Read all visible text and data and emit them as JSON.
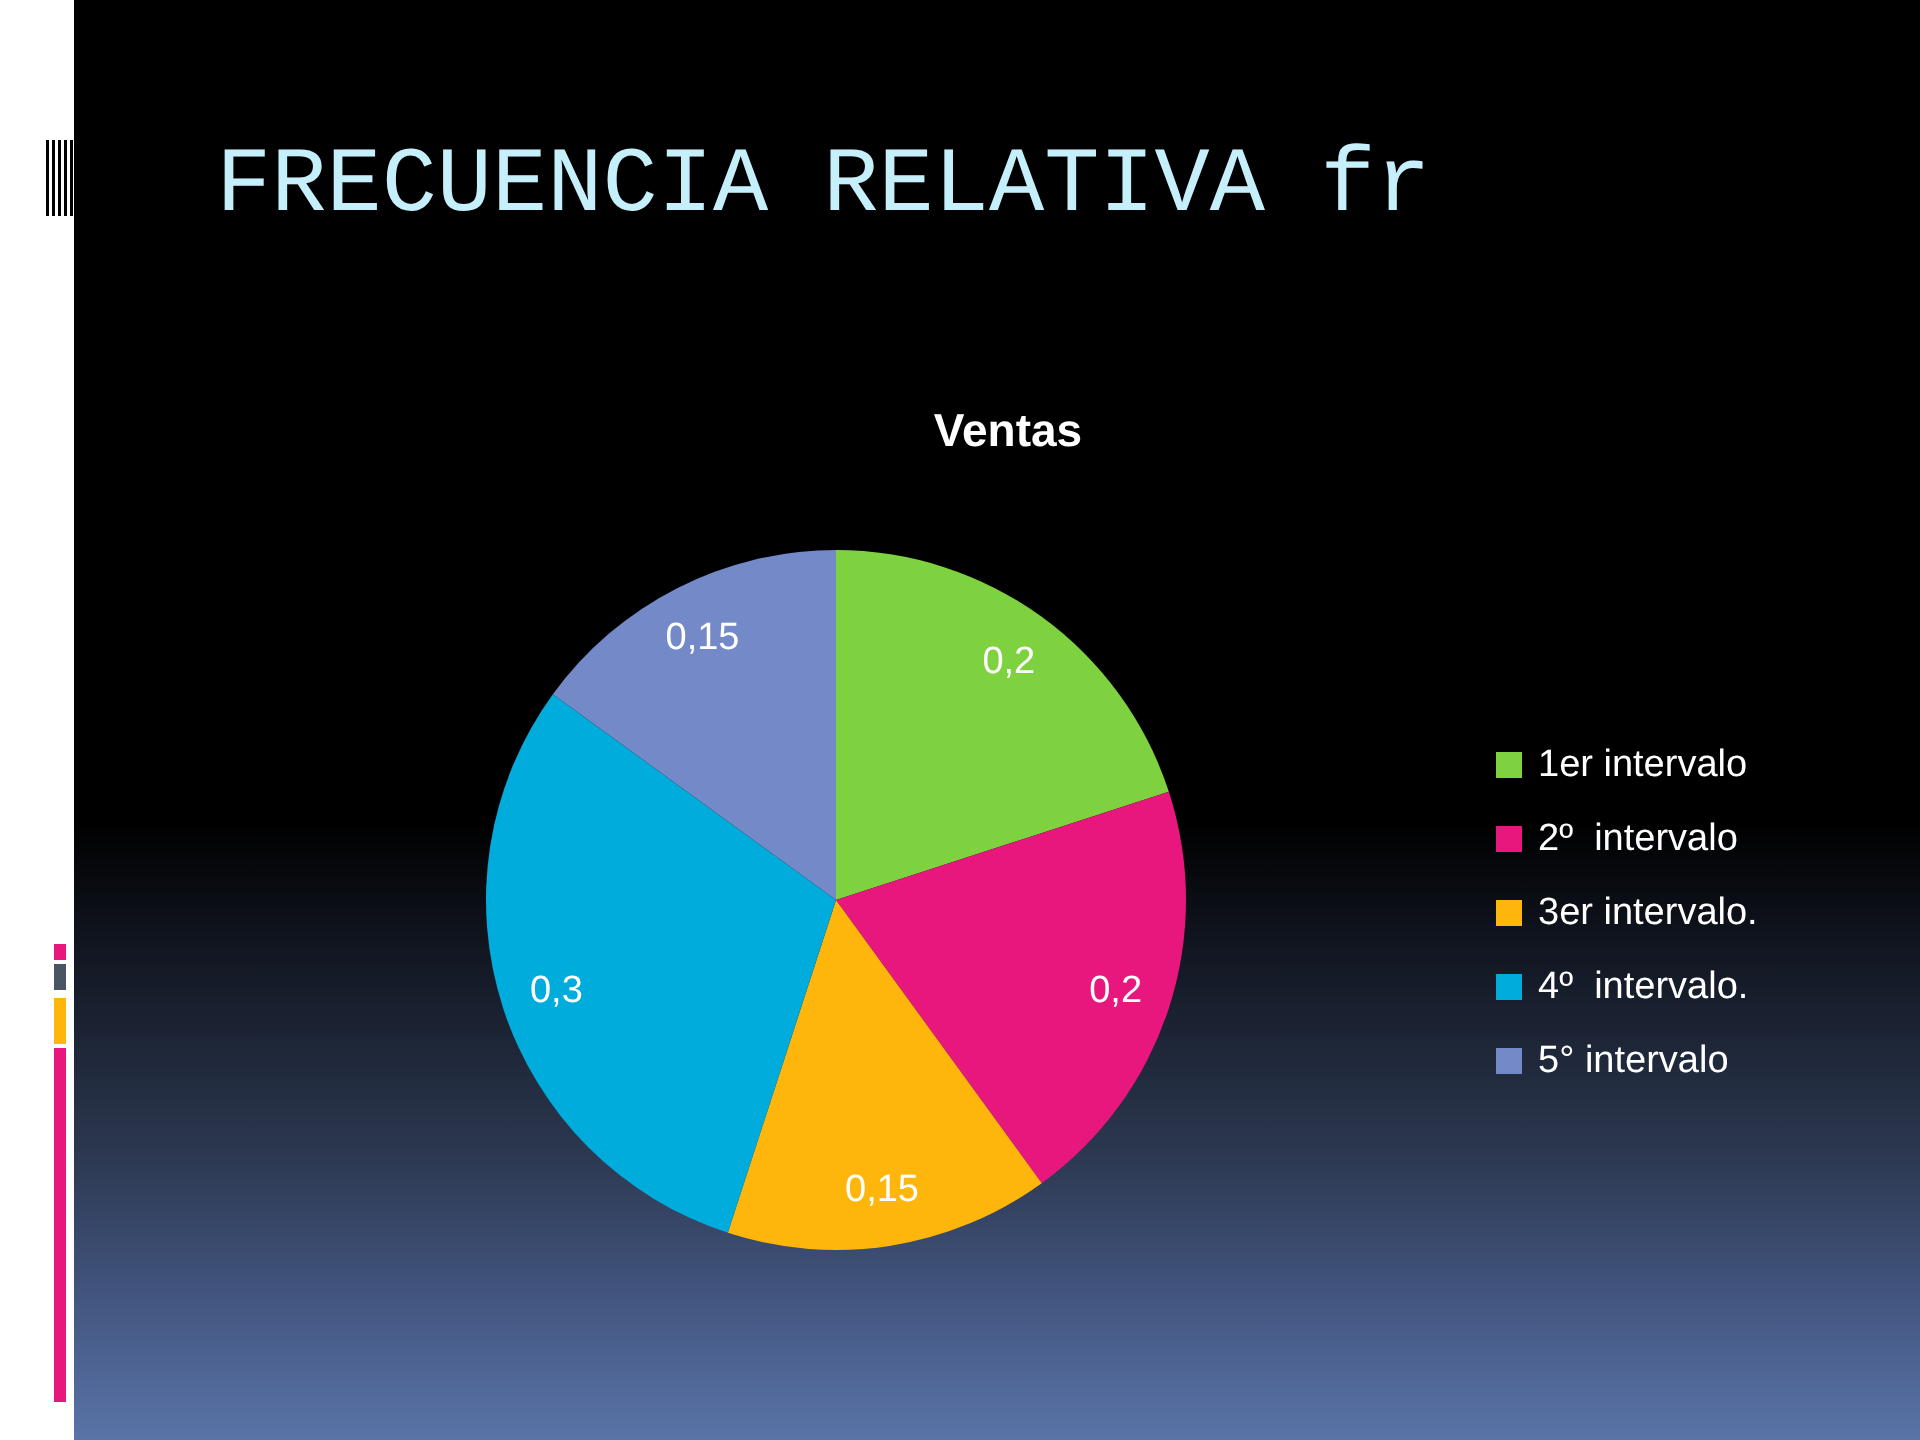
{
  "chart_data": {
    "type": "pie",
    "title": "FRECUENCIA RELATIVA fr",
    "subtitle": "Ventas",
    "categories": [
      "1er intervalo",
      "2º  intervalo",
      "3er intervalo.",
      "4º  intervalo.",
      "5° intervalo"
    ],
    "values": [
      0.2,
      0.2,
      0.15,
      0.3,
      0.15
    ],
    "colors": [
      "#7ed13f",
      "#e8177d",
      "#ffb60c",
      "#00acdc",
      "#7389c8"
    ],
    "value_labels": [
      "0,2",
      "0,2",
      "0,15",
      "0,3",
      "0,15"
    ],
    "legend": "right"
  }
}
